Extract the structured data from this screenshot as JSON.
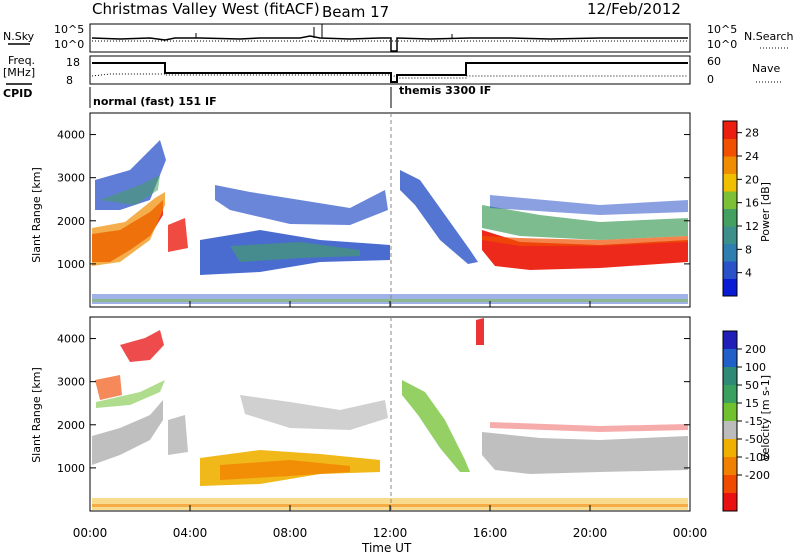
{
  "header": {
    "station": "Christmas Valley West (fitACF)",
    "beam": "Beam 17",
    "date": "12/Feb/2012"
  },
  "aux_panels": {
    "nsky_label": "N.Sky",
    "nsky_ticks": [
      "10^5",
      "10^0"
    ],
    "nsearch_label": "N.Search",
    "nsearch_ticks": [
      "10^5",
      "10^0"
    ],
    "freq_label_line1": "Freq.",
    "freq_label_line2": "[MHz]",
    "freq_ticks": [
      "18",
      "8"
    ],
    "nave_label": "Nave",
    "nave_ticks": [
      "60",
      "0"
    ],
    "cpid_label": "CPID",
    "cpid_segments": [
      "normal (fast) 151 IF",
      "themis 3300 IF"
    ]
  },
  "colors": {
    "power": [
      "#0a1bd6",
      "#2a52c8",
      "#2e7fb0",
      "#3c8f8a",
      "#44a060",
      "#7cc038",
      "#f0c000",
      "#f08c00",
      "#f05000",
      "#ec1e10"
    ],
    "velocity": [
      "#2020b8",
      "#2060c8",
      "#2e8a74",
      "#3aa060",
      "#70c030",
      "#bcbcbc",
      "#f0b000",
      "#f08000",
      "#f04a00",
      "#e81010"
    ]
  },
  "chart_data": [
    {
      "type": "heatmap",
      "name": "power",
      "ylabel": "Slant Range [km]",
      "yticks": [
        1000,
        2000,
        3000,
        4000
      ],
      "ylim": [
        0,
        4500
      ],
      "colorbar_label": "Power [dB]",
      "colorbar_ticks": [
        4,
        8,
        12,
        16,
        20,
        24,
        28
      ],
      "colorbar_range": [
        0,
        30
      ]
    },
    {
      "type": "heatmap",
      "name": "velocity",
      "ylabel": "Slant Range [km]",
      "yticks": [
        1000,
        2000,
        3000,
        4000
      ],
      "ylim": [
        0,
        4500
      ],
      "colorbar_label": "Velocity [m s-1]",
      "colorbar_ticks": [
        200,
        100,
        50,
        15,
        -15,
        -50,
        -100,
        -200
      ],
      "xlabel": "Time UT",
      "xticks": [
        "00:00",
        "04:00",
        "08:00",
        "12:00",
        "16:00",
        "20:00",
        "00:00"
      ]
    }
  ]
}
